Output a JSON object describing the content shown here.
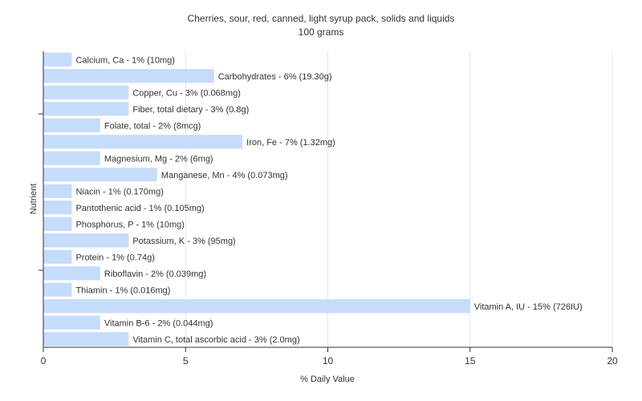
{
  "chart_data": {
    "type": "bar",
    "orientation": "horizontal",
    "title": "Cherries, sour, red, canned, light syrup pack, solids and liquids",
    "subtitle": "100 grams",
    "xlabel": "% Daily Value",
    "ylabel": "Nutrient",
    "xlim": [
      0,
      20
    ],
    "xticks": [
      0,
      5,
      10,
      15,
      20
    ],
    "grid": true,
    "bar_color": "#c6dcfb",
    "categories": [
      "Calcium, Ca - 1% (10mg)",
      "Carbohydrates - 6% (19.30g)",
      "Copper, Cu - 3% (0.068mg)",
      "Fiber, total dietary - 3% (0.8g)",
      "Folate, total - 2% (8mcg)",
      "Iron, Fe - 7% (1.32mg)",
      "Magnesium, Mg - 2% (6mg)",
      "Manganese, Mn - 4% (0.073mg)",
      "Niacin - 1% (0.170mg)",
      "Pantothenic acid - 1% (0.105mg)",
      "Phosphorus, P - 1% (10mg)",
      "Potassium, K - 3% (95mg)",
      "Protein - 1% (0.74g)",
      "Riboflavin - 2% (0.039mg)",
      "Thiamin - 1% (0.016mg)",
      "Vitamin A, IU - 15% (726IU)",
      "Vitamin B-6 - 2% (0.044mg)",
      "Vitamin C, total ascorbic acid - 3% (2.0mg)"
    ],
    "values": [
      1,
      6,
      3,
      3,
      2,
      7,
      2,
      4,
      1,
      1,
      1,
      3,
      1,
      2,
      1,
      15,
      2,
      3
    ]
  }
}
